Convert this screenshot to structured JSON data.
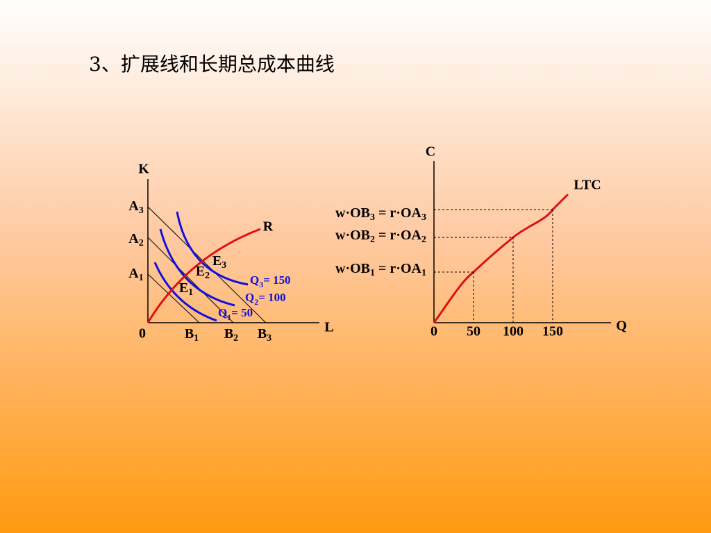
{
  "title": "3、扩展线和长期总成本曲线",
  "left": {
    "axis_y": "K",
    "axis_x": "L",
    "origin": "0",
    "a_labels": [
      [
        "A",
        "3"
      ],
      [
        "A",
        "2"
      ],
      [
        "A",
        "1"
      ]
    ],
    "b_labels": [
      [
        "B",
        "1"
      ],
      [
        "B",
        "2"
      ],
      [
        "B",
        "3"
      ]
    ],
    "e_labels": [
      [
        "E",
        "1"
      ],
      [
        "E",
        "2"
      ],
      [
        "E",
        "3"
      ]
    ],
    "r_label": "R",
    "isoquant_labels": [
      [
        "Q",
        "1",
        "= 50"
      ],
      [
        "Q",
        "2",
        "= 100"
      ],
      [
        "Q",
        "3",
        "= 150"
      ]
    ]
  },
  "right": {
    "axis_y": "C",
    "axis_x": "Q",
    "xticks": [
      0,
      50,
      100,
      150
    ],
    "curve_label": "LTC",
    "equations": [
      [
        "w·OB",
        "1",
        " = r·OA",
        "1"
      ],
      [
        "w·OB",
        "2",
        " = r·OA",
        "2"
      ],
      [
        "w·OB",
        "3",
        " = r·OA",
        "3"
      ]
    ]
  }
}
